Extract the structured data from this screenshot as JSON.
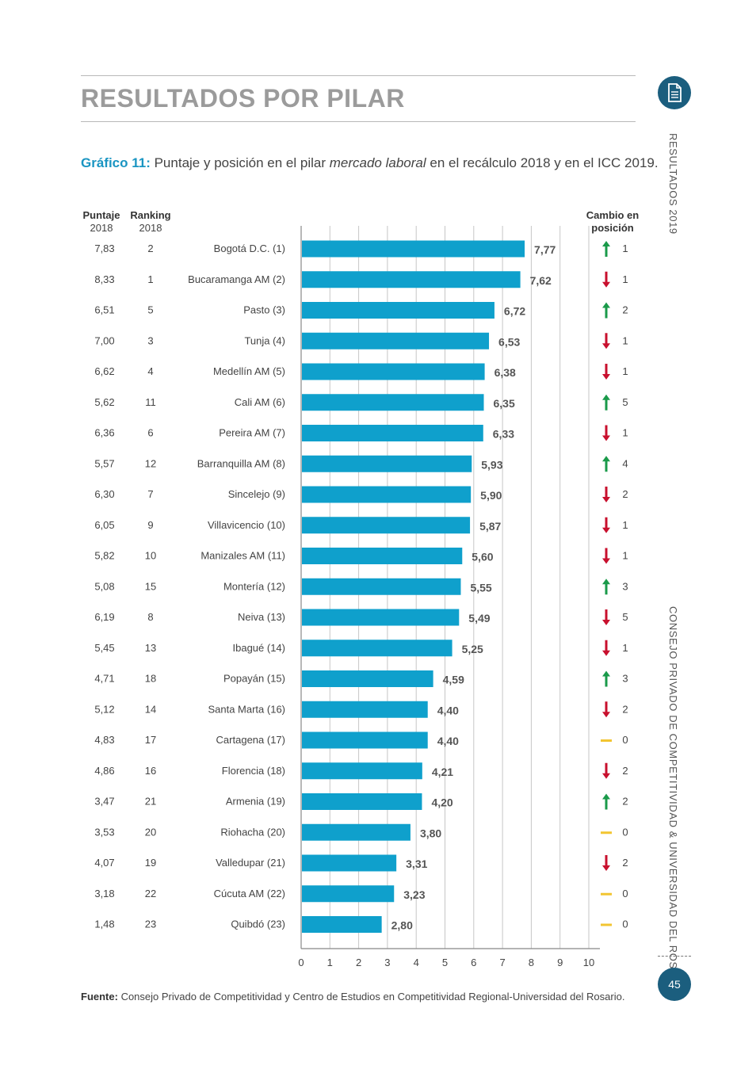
{
  "page": {
    "title": "RESULTADOS POR PILAR",
    "caption_label": "Gráfico 11:",
    "caption_pre": " Puntaje y posición en el pilar ",
    "caption_italic": "mercado laboral",
    "caption_post": " en el recálculo 2018 y en el ICC 2019.",
    "side_top": "RESULTADOS 2019",
    "side_bottom": "CONSEJO PRIVADO DE COMPETITIVIDAD & UNIVERSIDAD DEL ROSARIO",
    "page_number": "45",
    "source_label": "Fuente:",
    "source_text": " Consejo Privado de Competitividad y Centro de Estudios en Competitividad Regional-Universidad del Rosario."
  },
  "columns": {
    "puntaje_title": "Puntaje",
    "puntaje_year": "2018",
    "ranking_title": "Ranking",
    "ranking_year": "2018",
    "cambio_line1": "Cambio en",
    "cambio_line2": "posición"
  },
  "colors": {
    "bar": "#0fa0cc",
    "up": "#1a9a4a",
    "down": "#c8102e",
    "same": "#f2c531",
    "accent": "#1a95c2",
    "badge": "#1b5e7e"
  },
  "chart_data": {
    "type": "bar",
    "orientation": "horizontal",
    "xlim": [
      0,
      10
    ],
    "xticks": [
      "0",
      "1",
      "2",
      "3",
      "4",
      "5",
      "6",
      "7",
      "8",
      "9",
      "10"
    ],
    "grid": true,
    "categories": [
      "Bogotá D.C. (1)",
      "Bucaramanga AM (2)",
      "Pasto (3)",
      "Tunja (4)",
      "Medellín AM (5)",
      "Cali AM (6)",
      "Pereira AM (7)",
      "Barranquilla AM (8)",
      "Sincelejo (9)",
      "Villavicencio (10)",
      "Manizales AM (11)",
      "Montería (12)",
      "Neiva (13)",
      "Ibagué (14)",
      "Popayán (15)",
      "Santa Marta (16)",
      "Cartagena (17)",
      "Florencia (18)",
      "Armenia (19)",
      "Riohacha (20)",
      "Valledupar (21)",
      "Cúcuta AM (22)",
      "Quibdó (23)"
    ],
    "values": [
      7.77,
      7.62,
      6.72,
      6.53,
      6.38,
      6.35,
      6.33,
      5.93,
      5.9,
      5.87,
      5.6,
      5.55,
      5.49,
      5.25,
      4.59,
      4.4,
      4.4,
      4.21,
      4.2,
      3.8,
      3.31,
      3.23,
      2.8
    ],
    "value_labels": [
      "7,77",
      "7,62",
      "6,72",
      "6,53",
      "6,38",
      "6,35",
      "6,33",
      "5,93",
      "5,90",
      "5,87",
      "5,60",
      "5,55",
      "5,49",
      "5,25",
      "4,59",
      "4,40",
      "4,40",
      "4,21",
      "4,20",
      "3,80",
      "3,31",
      "3,23",
      "2,80"
    ],
    "puntaje_2018": [
      "7,83",
      "8,33",
      "6,51",
      "7,00",
      "6,62",
      "5,62",
      "6,36",
      "5,57",
      "6,30",
      "6,05",
      "5,82",
      "5,08",
      "6,19",
      "5,45",
      "4,71",
      "5,12",
      "4,83",
      "4,86",
      "3,47",
      "3,53",
      "4,07",
      "3,18",
      "1,48"
    ],
    "ranking_2018": [
      "2",
      "1",
      "5",
      "3",
      "4",
      "11",
      "6",
      "12",
      "7",
      "9",
      "10",
      "15",
      "8",
      "13",
      "18",
      "14",
      "17",
      "16",
      "21",
      "20",
      "19",
      "22",
      "23"
    ],
    "change_direction": [
      "up",
      "down",
      "up",
      "down",
      "down",
      "up",
      "down",
      "up",
      "down",
      "down",
      "down",
      "up",
      "down",
      "down",
      "up",
      "down",
      "same",
      "down",
      "up",
      "same",
      "down",
      "same",
      "same"
    ],
    "change_value": [
      "1",
      "1",
      "2",
      "1",
      "1",
      "5",
      "1",
      "4",
      "2",
      "1",
      "1",
      "3",
      "5",
      "1",
      "3",
      "2",
      "0",
      "2",
      "2",
      "0",
      "2",
      "0",
      "0"
    ]
  }
}
